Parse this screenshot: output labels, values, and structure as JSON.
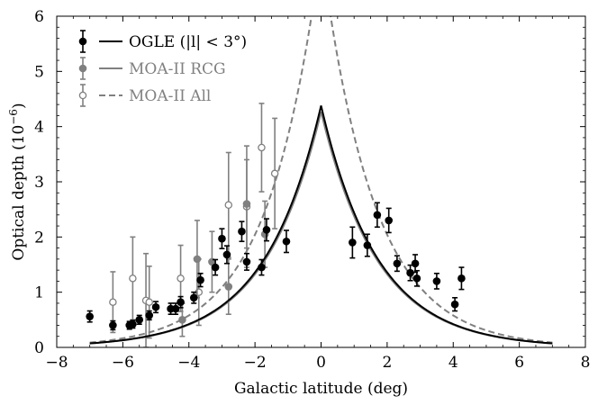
{
  "chart_data": {
    "type": "scatter",
    "title": "",
    "xlabel": "Galactic latitude (deg)",
    "ylabel": "Optical depth (10",
    "ylabel_sup": "−6",
    "ylabel_close": ")",
    "xlim": [
      -8,
      8
    ],
    "ylim": [
      0,
      6
    ],
    "xticks": [
      -8,
      -6,
      -4,
      -2,
      0,
      2,
      4,
      6,
      8
    ],
    "yticks": [
      0,
      1,
      2,
      3,
      4,
      5,
      6
    ],
    "xtick_labels": [
      "−8",
      "−6",
      "−4",
      "−2",
      "0",
      "2",
      "4",
      "6",
      "8"
    ],
    "ytick_labels": [
      "0",
      "1",
      "2",
      "3",
      "4",
      "5",
      "6"
    ],
    "legend_position": "top-left",
    "series": [
      {
        "name": "OGLE",
        "legend_label": "OGLE (|l| < 3°)",
        "color": "#000000",
        "marker": "filled-circle",
        "line": "solid",
        "model": {
          "peak": 4.38,
          "scale": 0.585,
          "x_range": [
            -7,
            7
          ]
        },
        "points": [
          {
            "x": -7.0,
            "y": 0.56,
            "err": 0.1
          },
          {
            "x": -6.3,
            "y": 0.4,
            "err": 0.08
          },
          {
            "x": -5.8,
            "y": 0.4,
            "err": 0.07
          },
          {
            "x": -5.7,
            "y": 0.42,
            "err": 0.07
          },
          {
            "x": -5.5,
            "y": 0.5,
            "err": 0.08
          },
          {
            "x": -5.2,
            "y": 0.58,
            "err": 0.08
          },
          {
            "x": -5.0,
            "y": 0.73,
            "err": 0.1
          },
          {
            "x": -4.55,
            "y": 0.7,
            "err": 0.1
          },
          {
            "x": -4.4,
            "y": 0.7,
            "err": 0.1
          },
          {
            "x": -4.25,
            "y": 0.82,
            "err": 0.1
          },
          {
            "x": -3.85,
            "y": 0.9,
            "err": 0.1
          },
          {
            "x": -3.65,
            "y": 1.22,
            "err": 0.12
          },
          {
            "x": -3.2,
            "y": 1.45,
            "err": 0.14
          },
          {
            "x": -3.0,
            "y": 1.97,
            "err": 0.18
          },
          {
            "x": -2.85,
            "y": 1.68,
            "err": 0.16
          },
          {
            "x": -2.4,
            "y": 2.1,
            "err": 0.18
          },
          {
            "x": -2.25,
            "y": 1.55,
            "err": 0.15
          },
          {
            "x": -1.8,
            "y": 1.45,
            "err": 0.14
          },
          {
            "x": -1.65,
            "y": 2.13,
            "err": 0.2
          },
          {
            "x": -1.05,
            "y": 1.92,
            "err": 0.2
          },
          {
            "x": 0.95,
            "y": 1.9,
            "err": 0.28
          },
          {
            "x": 1.4,
            "y": 1.85,
            "err": 0.2
          },
          {
            "x": 1.7,
            "y": 2.4,
            "err": 0.22
          },
          {
            "x": 2.05,
            "y": 2.3,
            "err": 0.22
          },
          {
            "x": 2.3,
            "y": 1.52,
            "err": 0.14
          },
          {
            "x": 2.7,
            "y": 1.35,
            "err": 0.14
          },
          {
            "x": 2.85,
            "y": 1.52,
            "err": 0.16
          },
          {
            "x": 2.9,
            "y": 1.25,
            "err": 0.14
          },
          {
            "x": 3.5,
            "y": 1.2,
            "err": 0.14
          },
          {
            "x": 4.05,
            "y": 0.78,
            "err": 0.12
          },
          {
            "x": 4.25,
            "y": 1.25,
            "err": 0.2
          }
        ]
      },
      {
        "name": "MOA-II RCG",
        "legend_label": "MOA-II RCG",
        "color": "#808080",
        "marker": "filled-circle",
        "line": "solid",
        "model": {
          "peak": 4.27,
          "scale": 0.585,
          "x_range": [
            -7,
            7
          ]
        },
        "points": [
          {
            "x": -4.2,
            "y": 0.5,
            "err": 0.3
          },
          {
            "x": -3.75,
            "y": 1.6,
            "err": 0.7
          },
          {
            "x": -3.3,
            "y": 1.55,
            "err": 0.55
          },
          {
            "x": -2.8,
            "y": 1.1,
            "err": 0.5
          },
          {
            "x": -2.25,
            "y": 2.6,
            "err": 0.8
          },
          {
            "x": -1.7,
            "y": 2.05,
            "err": 0.6
          }
        ]
      },
      {
        "name": "MOA-II All",
        "legend_label": "MOA-II All",
        "color": "#808080",
        "marker": "open-circle",
        "line": "dashed",
        "model": {
          "peak": 7.2,
          "scale": 0.63,
          "x_range": [
            -7,
            7
          ]
        },
        "points": [
          {
            "x": -6.3,
            "y": 0.82,
            "err": 0.55
          },
          {
            "x": -5.7,
            "y": 1.25,
            "err": 0.75
          },
          {
            "x": -5.3,
            "y": 0.85,
            "err": 0.85
          },
          {
            "x": -5.2,
            "y": 0.82,
            "err": 0.65
          },
          {
            "x": -4.25,
            "y": 1.25,
            "err": 0.6
          },
          {
            "x": -3.7,
            "y": 1.0,
            "err": 0.6
          },
          {
            "x": -2.8,
            "y": 2.58,
            "err": 0.95
          },
          {
            "x": -2.25,
            "y": 2.55,
            "err": 1.1
          },
          {
            "x": -1.8,
            "y": 3.62,
            "err": 0.8
          },
          {
            "x": -1.4,
            "y": 3.15,
            "err": 1.0
          }
        ]
      }
    ]
  }
}
